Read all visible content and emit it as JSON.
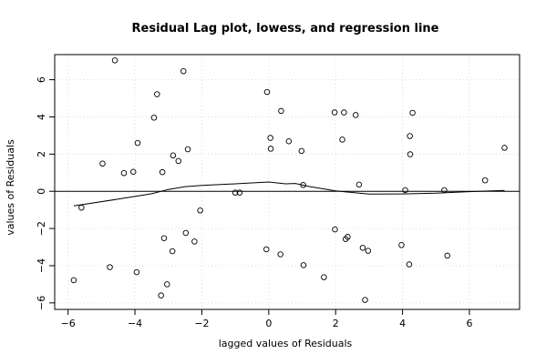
{
  "chart_data": {
    "type": "scatter",
    "title": "Residual Lag plot, lowess, and regression line",
    "xlabel": "lagged values of Residuals",
    "ylabel": "values of Residuals",
    "xlim": [
      -6.4,
      7.5
    ],
    "ylim": [
      -6.35,
      7.35
    ],
    "x_ticks": [
      -6,
      -4,
      -2,
      0,
      2,
      4,
      6
    ],
    "y_ticks": [
      -6,
      -4,
      -2,
      0,
      2,
      4,
      6
    ],
    "x_tick_labels": [
      "−6",
      "−4",
      "−2",
      "0",
      "2",
      "4",
      "6"
    ],
    "y_tick_labels": [
      "−6",
      "−4",
      "−2",
      "0",
      "2",
      "4",
      "6"
    ],
    "grid": true,
    "points": [
      {
        "x": -5.83,
        "y": -4.78
      },
      {
        "x": -5.6,
        "y": -0.88
      },
      {
        "x": -4.97,
        "y": 1.49
      },
      {
        "x": -4.75,
        "y": -4.08
      },
      {
        "x": -4.6,
        "y": 7.04
      },
      {
        "x": -4.33,
        "y": 0.98
      },
      {
        "x": -4.05,
        "y": 1.05
      },
      {
        "x": -3.95,
        "y": -4.35
      },
      {
        "x": -3.92,
        "y": 2.6
      },
      {
        "x": -3.43,
        "y": 3.96
      },
      {
        "x": -3.34,
        "y": 5.22
      },
      {
        "x": -3.22,
        "y": -5.6
      },
      {
        "x": -3.18,
        "y": 1.03
      },
      {
        "x": -3.13,
        "y": -2.52
      },
      {
        "x": -3.04,
        "y": -5.0
      },
      {
        "x": -2.88,
        "y": -3.22
      },
      {
        "x": -2.86,
        "y": 1.93
      },
      {
        "x": -2.7,
        "y": 1.63
      },
      {
        "x": -2.55,
        "y": 6.46
      },
      {
        "x": -2.48,
        "y": -2.24
      },
      {
        "x": -2.42,
        "y": 2.26
      },
      {
        "x": -2.22,
        "y": -2.7
      },
      {
        "x": -2.05,
        "y": -1.03
      },
      {
        "x": -1.0,
        "y": -0.07
      },
      {
        "x": -0.87,
        "y": -0.07
      },
      {
        "x": -0.07,
        "y": -3.12
      },
      {
        "x": -0.05,
        "y": 5.34
      },
      {
        "x": 0.05,
        "y": 2.87
      },
      {
        "x": 0.06,
        "y": 2.29
      },
      {
        "x": 0.35,
        "y": -3.39
      },
      {
        "x": 0.37,
        "y": 4.32
      },
      {
        "x": 0.6,
        "y": 2.69
      },
      {
        "x": 0.98,
        "y": 2.17
      },
      {
        "x": 1.03,
        "y": 0.34
      },
      {
        "x": 1.04,
        "y": -3.97
      },
      {
        "x": 1.65,
        "y": -4.62
      },
      {
        "x": 1.97,
        "y": 4.24
      },
      {
        "x": 1.98,
        "y": -2.05
      },
      {
        "x": 2.2,
        "y": 2.78
      },
      {
        "x": 2.25,
        "y": 4.24
      },
      {
        "x": 2.3,
        "y": -2.57
      },
      {
        "x": 2.36,
        "y": -2.45
      },
      {
        "x": 2.6,
        "y": 4.1
      },
      {
        "x": 2.7,
        "y": 0.36
      },
      {
        "x": 2.81,
        "y": -3.04
      },
      {
        "x": 2.88,
        "y": -5.84
      },
      {
        "x": 2.97,
        "y": -3.2
      },
      {
        "x": 3.97,
        "y": -2.89
      },
      {
        "x": 4.08,
        "y": 0.06
      },
      {
        "x": 4.2,
        "y": -3.93
      },
      {
        "x": 4.22,
        "y": 2.97
      },
      {
        "x": 4.23,
        "y": 1.99
      },
      {
        "x": 4.3,
        "y": 4.22
      },
      {
        "x": 5.25,
        "y": 0.06
      },
      {
        "x": 5.34,
        "y": -3.46
      },
      {
        "x": 6.47,
        "y": 0.59
      },
      {
        "x": 7.05,
        "y": 2.34
      }
    ],
    "lowess": [
      {
        "x": -5.83,
        "y": -0.78
      },
      {
        "x": -4.5,
        "y": -0.42
      },
      {
        "x": -3.5,
        "y": -0.13
      },
      {
        "x": -3.0,
        "y": 0.1
      },
      {
        "x": -2.5,
        "y": 0.25
      },
      {
        "x": -2.0,
        "y": 0.32
      },
      {
        "x": -1.0,
        "y": 0.4
      },
      {
        "x": 0.0,
        "y": 0.5
      },
      {
        "x": 0.5,
        "y": 0.4
      },
      {
        "x": 0.8,
        "y": 0.42
      },
      {
        "x": 1.2,
        "y": 0.26
      },
      {
        "x": 2.0,
        "y": 0.02
      },
      {
        "x": 3.0,
        "y": -0.15
      },
      {
        "x": 4.0,
        "y": -0.14
      },
      {
        "x": 5.0,
        "y": -0.1
      },
      {
        "x": 6.0,
        "y": -0.02
      },
      {
        "x": 7.05,
        "y": 0.05
      }
    ],
    "regression": {
      "x": [
        -6.4,
        7.5
      ],
      "y": [
        0.0,
        0.0
      ]
    }
  }
}
